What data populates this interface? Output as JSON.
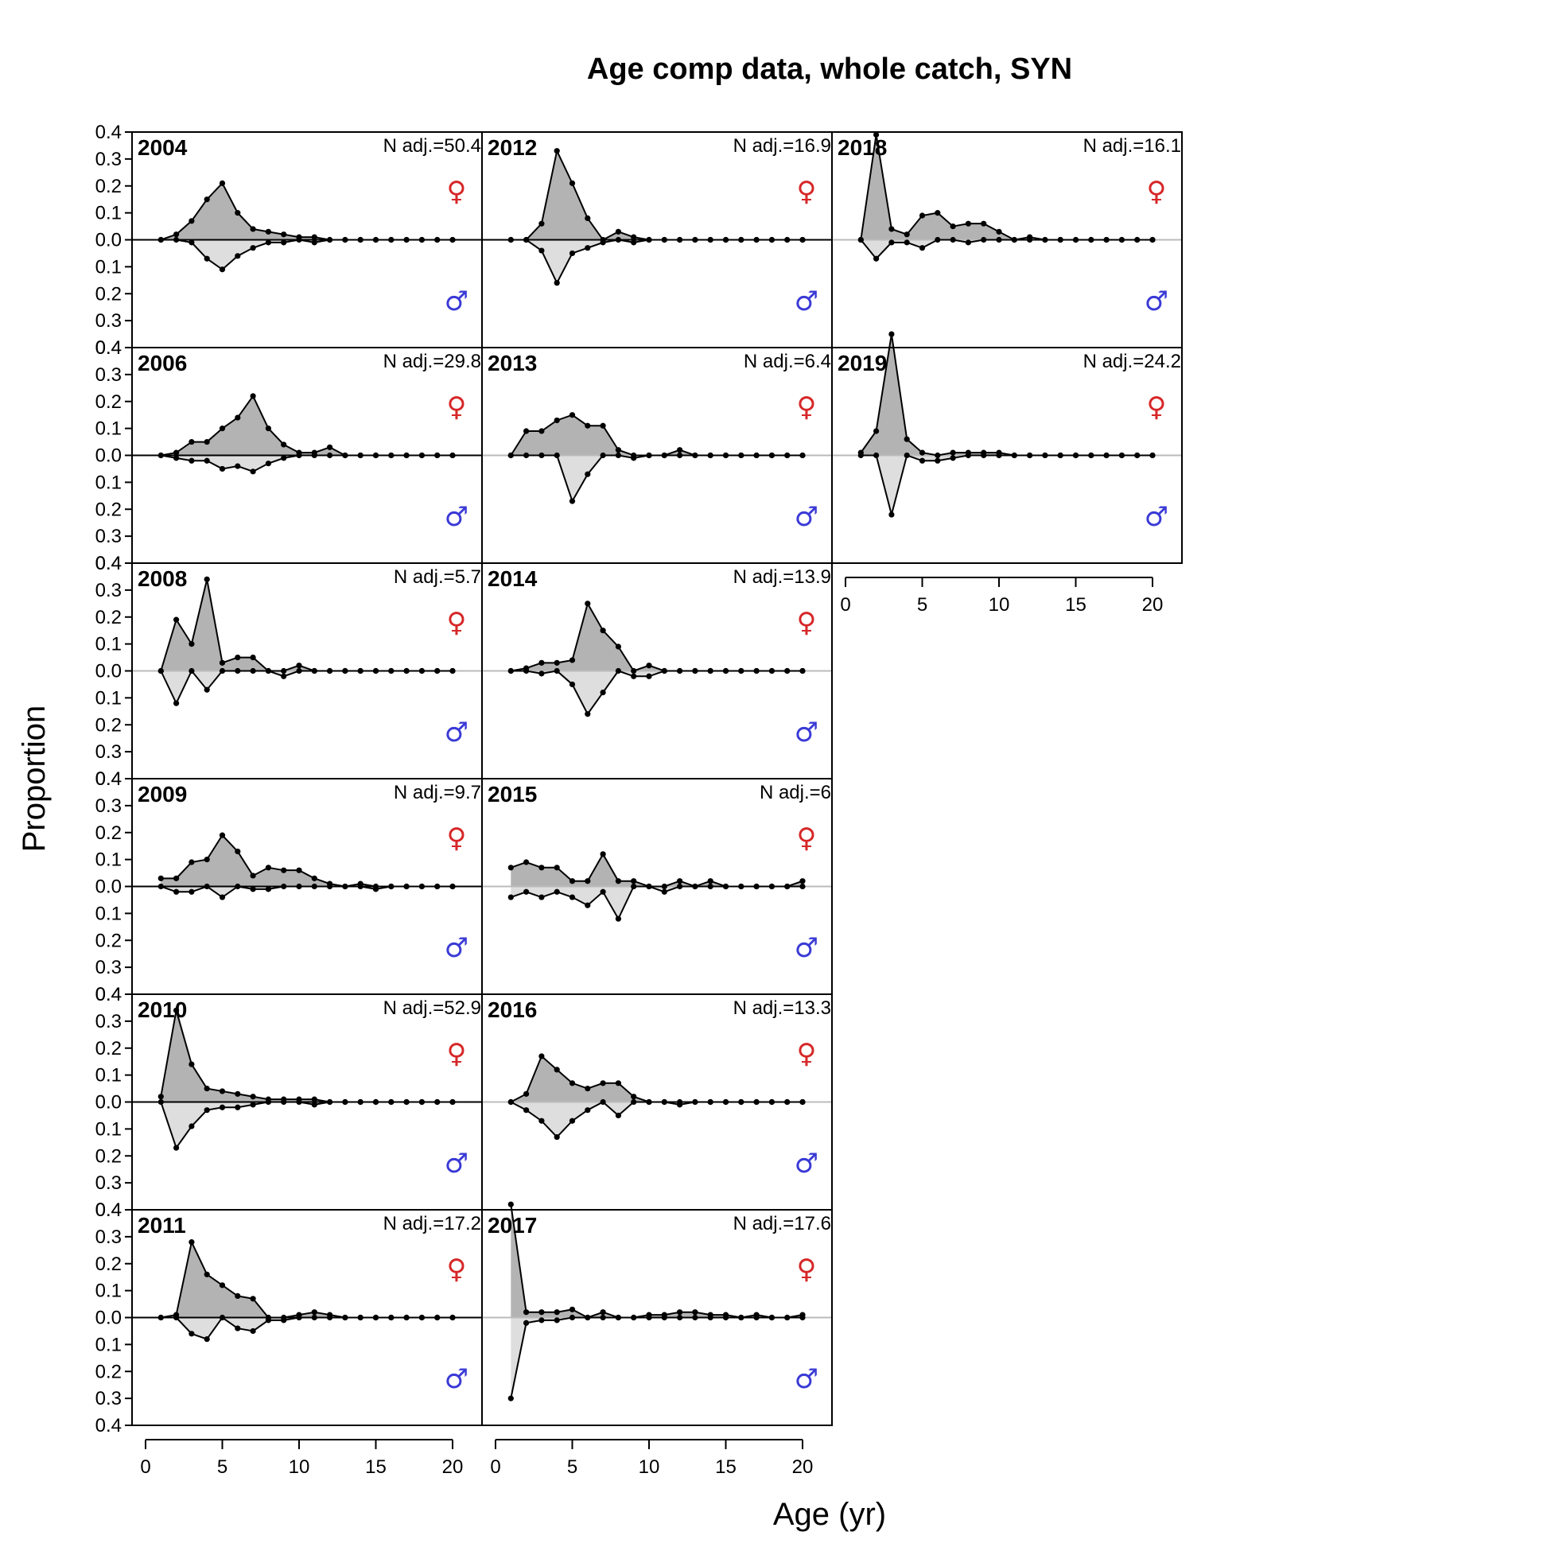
{
  "chart_data": {
    "type": "area",
    "title": "Age comp data, whole catch, SYN",
    "xlabel": "Age (yr)",
    "ylabel": "Proportion",
    "xlim": [
      0,
      22
    ],
    "ylim": [
      -0.4,
      0.4
    ],
    "x_ticks": [
      "0",
      "5",
      "10",
      "15",
      "20"
    ],
    "y_tick_labels": [
      "0.4",
      "0.3",
      "0.2",
      "0.1",
      "0.0",
      "0.1",
      "0.2",
      "0.3",
      "0.4"
    ],
    "y_tick_values": [
      0.4,
      0.3,
      0.2,
      0.1,
      0.0,
      -0.1,
      -0.2,
      -0.3,
      -0.4
    ],
    "female_symbol": "♀",
    "male_symbol": "♂",
    "colors": {
      "female_fill": "#b3b3b3",
      "male_fill": "#dedede",
      "female_symbol": "#d62728",
      "male_symbol": "#3a3ad6",
      "zero_line": "#bbbbbb"
    },
    "ages": [
      1,
      2,
      3,
      4,
      5,
      6,
      7,
      8,
      9,
      10,
      11,
      12,
      13,
      14,
      15,
      16,
      17,
      18,
      19,
      20
    ],
    "panels": [
      {
        "year": "2004",
        "n_adj": "N adj.=50.4",
        "zero_line_dark": true,
        "female": [
          0,
          0.02,
          0.07,
          0.15,
          0.21,
          0.1,
          0.04,
          0.03,
          0.02,
          0.01,
          0.01,
          0,
          0,
          0,
          0,
          0,
          0,
          0,
          0,
          0
        ],
        "male": [
          0,
          0,
          0.01,
          0.07,
          0.11,
          0.06,
          0.03,
          0.01,
          0.01,
          0,
          0.01,
          0,
          0,
          0,
          0,
          0,
          0,
          0,
          0,
          0
        ]
      },
      {
        "year": "2006",
        "n_adj": "N adj.=29.8",
        "zero_line_dark": true,
        "female": [
          0,
          0.01,
          0.05,
          0.05,
          0.1,
          0.14,
          0.22,
          0.1,
          0.04,
          0.01,
          0.01,
          0.03,
          0,
          0,
          0,
          0,
          0,
          0,
          0,
          0
        ],
        "male": [
          0,
          0.01,
          0.02,
          0.02,
          0.05,
          0.04,
          0.06,
          0.03,
          0.01,
          0,
          0,
          0,
          0,
          0,
          0,
          0,
          0,
          0,
          0,
          0
        ]
      },
      {
        "year": "2008",
        "n_adj": "N adj.=5.7",
        "zero_line_dark": false,
        "female": [
          0,
          0.19,
          0.1,
          0.34,
          0.03,
          0.05,
          0.05,
          0,
          0,
          0.02,
          0,
          0,
          0,
          0,
          0,
          0,
          0,
          0,
          0,
          0
        ],
        "male": [
          0,
          0.12,
          0,
          0.07,
          0,
          0,
          0,
          0,
          0.02,
          0,
          0,
          0,
          0,
          0,
          0,
          0,
          0,
          0,
          0,
          0
        ]
      },
      {
        "year": "2009",
        "n_adj": "N adj.=9.7",
        "zero_line_dark": true,
        "female": [
          0.03,
          0.03,
          0.09,
          0.1,
          0.19,
          0.13,
          0.04,
          0.07,
          0.06,
          0.06,
          0.03,
          0.01,
          0,
          0.01,
          0,
          0,
          0,
          0,
          0,
          0
        ],
        "male": [
          0,
          0.02,
          0.02,
          0,
          0.04,
          0,
          0.01,
          0.01,
          0,
          0,
          0,
          0,
          0,
          0,
          0.01,
          0,
          0,
          0,
          0,
          0
        ]
      },
      {
        "year": "2010",
        "n_adj": "N adj.=52.9",
        "zero_line_dark": true,
        "female": [
          0.02,
          0.34,
          0.14,
          0.05,
          0.04,
          0.03,
          0.02,
          0.01,
          0.01,
          0.01,
          0.01,
          0,
          0,
          0,
          0,
          0,
          0,
          0,
          0,
          0
        ],
        "male": [
          0,
          0.17,
          0.09,
          0.03,
          0.02,
          0.02,
          0.01,
          0,
          0,
          0,
          0.01,
          0,
          0,
          0,
          0,
          0,
          0,
          0,
          0,
          0
        ]
      },
      {
        "year": "2011",
        "n_adj": "N adj.=17.2",
        "zero_line_dark": true,
        "female": [
          0,
          0.01,
          0.28,
          0.16,
          0.12,
          0.08,
          0.07,
          0,
          0,
          0.01,
          0.02,
          0.01,
          0,
          0,
          0,
          0,
          0,
          0,
          0,
          0
        ],
        "male": [
          0,
          0,
          0.06,
          0.08,
          0,
          0.04,
          0.05,
          0.01,
          0.01,
          0,
          0,
          0,
          0,
          0,
          0,
          0,
          0,
          0,
          0,
          0
        ]
      },
      {
        "year": "2012",
        "n_adj": "N adj.=16.9",
        "zero_line_dark": true,
        "female": [
          0,
          0,
          0.06,
          0.33,
          0.21,
          0.08,
          0,
          0.03,
          0.01,
          0,
          0,
          0,
          0,
          0,
          0,
          0,
          0,
          0,
          0,
          0
        ],
        "male": [
          0,
          0,
          0.04,
          0.16,
          0.05,
          0.03,
          0.01,
          0,
          0.01,
          0,
          0,
          0,
          0,
          0,
          0,
          0,
          0,
          0,
          0,
          0
        ]
      },
      {
        "year": "2013",
        "n_adj": "N adj.=6.4",
        "zero_line_dark": false,
        "female": [
          0,
          0.09,
          0.09,
          0.13,
          0.15,
          0.11,
          0.11,
          0.02,
          0,
          0,
          0,
          0.02,
          0,
          0,
          0,
          0,
          0,
          0,
          0,
          0
        ],
        "male": [
          0,
          0,
          0,
          0,
          0.17,
          0.07,
          0,
          0,
          0.01,
          0,
          0,
          0,
          0,
          0,
          0,
          0,
          0,
          0,
          0,
          0
        ]
      },
      {
        "year": "2014",
        "n_adj": "N adj.=13.9",
        "zero_line_dark": false,
        "female": [
          0,
          0.01,
          0.03,
          0.03,
          0.04,
          0.25,
          0.15,
          0.09,
          0,
          0.02,
          0,
          0,
          0,
          0,
          0,
          0,
          0,
          0,
          0,
          0
        ],
        "male": [
          0,
          0,
          0.01,
          0,
          0.05,
          0.16,
          0.08,
          0,
          0.02,
          0.02,
          0,
          0,
          0,
          0,
          0,
          0,
          0,
          0,
          0,
          0
        ]
      },
      {
        "year": "2015",
        "n_adj": "N adj.=6",
        "zero_line_dark": false,
        "female": [
          0.07,
          0.09,
          0.07,
          0.07,
          0.02,
          0.02,
          0.12,
          0.02,
          0.02,
          0,
          0,
          0.02,
          0,
          0.02,
          0,
          0,
          0,
          0,
          0,
          0.02
        ],
        "male": [
          0.04,
          0.02,
          0.04,
          0.02,
          0.04,
          0.07,
          0.02,
          0.12,
          0,
          0,
          0.02,
          0,
          0,
          0,
          0,
          0,
          0,
          0,
          0,
          0
        ]
      },
      {
        "year": "2016",
        "n_adj": "N adj.=13.3",
        "zero_line_dark": false,
        "female": [
          0,
          0.03,
          0.17,
          0.12,
          0.07,
          0.05,
          0.07,
          0.07,
          0.02,
          0,
          0,
          0,
          0,
          0,
          0,
          0,
          0,
          0,
          0,
          0
        ],
        "male": [
          0,
          0.03,
          0.07,
          0.13,
          0.07,
          0.03,
          0,
          0.05,
          0,
          0,
          0,
          0.01,
          0,
          0,
          0,
          0,
          0,
          0,
          0,
          0
        ]
      },
      {
        "year": "2017",
        "n_adj": "N adj.=17.6",
        "zero_line_dark": false,
        "female": [
          0.42,
          0.02,
          0.02,
          0.02,
          0.03,
          0,
          0.02,
          0,
          0,
          0.01,
          0.01,
          0.02,
          0.02,
          0.01,
          0.01,
          0,
          0.01,
          0,
          0,
          0.01
        ],
        "male": [
          0.3,
          0.02,
          0.01,
          0.01,
          0,
          0,
          0,
          0,
          0,
          0,
          0,
          0,
          0,
          0,
          0,
          0,
          0,
          0,
          0,
          0
        ]
      },
      {
        "year": "2018",
        "n_adj": "N adj.=16.1",
        "zero_line_dark": false,
        "female": [
          0,
          0.39,
          0.04,
          0.02,
          0.09,
          0.1,
          0.05,
          0.06,
          0.06,
          0.03,
          0,
          0.01,
          0,
          0,
          0,
          0,
          0,
          0,
          0,
          0
        ],
        "male": [
          0,
          0.07,
          0.01,
          0.01,
          0.03,
          0,
          0,
          0.01,
          0,
          0,
          0,
          0,
          0,
          0,
          0,
          0,
          0,
          0,
          0,
          0
        ]
      },
      {
        "year": "2019",
        "n_adj": "N adj.=24.2",
        "zero_line_dark": false,
        "female": [
          0.01,
          0.09,
          0.45,
          0.06,
          0.01,
          0,
          0.01,
          0.01,
          0.01,
          0.01,
          0,
          0,
          0,
          0,
          0,
          0,
          0,
          0,
          0,
          0
        ],
        "male": [
          0,
          0,
          0.22,
          0,
          0.02,
          0.02,
          0.01,
          0,
          0,
          0,
          0,
          0,
          0,
          0,
          0,
          0,
          0,
          0,
          0,
          0
        ]
      }
    ]
  }
}
